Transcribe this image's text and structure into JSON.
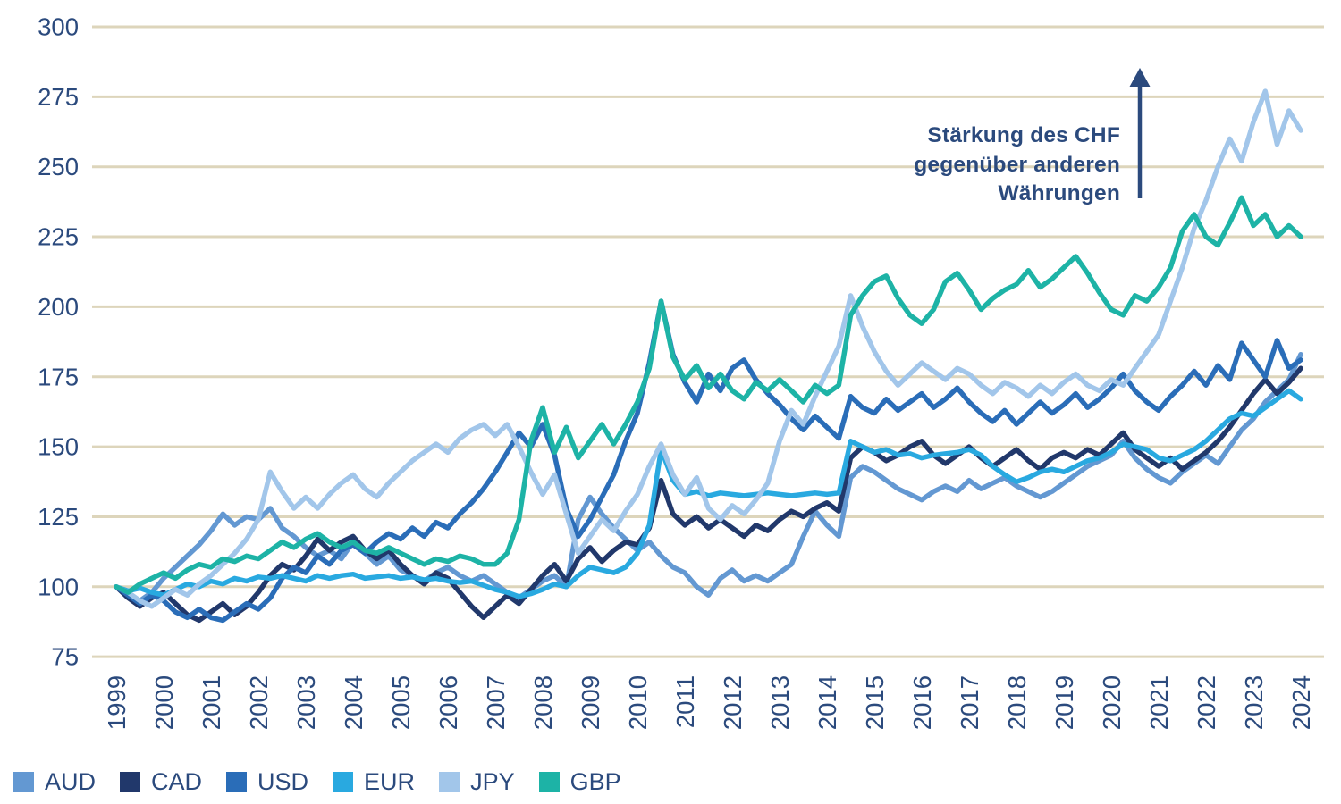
{
  "annotation": {
    "line1": "Stärkung des CHF",
    "line2": "gegenüber anderen",
    "line3": "Währungen"
  },
  "legend": {
    "items": [
      {
        "label": "AUD",
        "color": "#6398d2"
      },
      {
        "label": "CAD",
        "color": "#21386b"
      },
      {
        "label": "USD",
        "color": "#2a6db8"
      },
      {
        "label": "EUR",
        "color": "#29a9e0"
      },
      {
        "label": "JPY",
        "color": "#a2c6ea"
      },
      {
        "label": "GBP",
        "color": "#1db3a6"
      }
    ]
  },
  "colors": {
    "grid": "#ddd5bb",
    "text": "#2b4a7d",
    "arrow": "#2b4a7d",
    "background": "#ffffff"
  },
  "chart_data": {
    "type": "line",
    "title": "",
    "xlabel": "",
    "ylabel": "",
    "grid": true,
    "legend_position": "bottom-left",
    "annotation": "Stärkung des CHF gegenüber anderen Währungen",
    "ylim": [
      75,
      300
    ],
    "y_ticks": [
      300,
      275,
      250,
      225,
      200,
      175,
      150,
      125,
      100,
      75
    ],
    "x_ticks": [
      1999,
      2000,
      2001,
      2002,
      2003,
      2004,
      2005,
      2006,
      2007,
      2008,
      2009,
      2010,
      2011,
      2012,
      2013,
      2014,
      2015,
      2016,
      2017,
      2018,
      2019,
      2020,
      2021,
      2022,
      2023,
      2024
    ],
    "x_start": 1999,
    "x_step": 0.25,
    "index_base": 100,
    "series": [
      {
        "name": "AUD",
        "color": "#6398d2",
        "values": [
          100,
          96,
          95,
          98,
          103,
          107,
          111,
          115,
          120,
          126,
          122,
          125,
          124,
          128,
          121,
          118,
          114,
          111,
          113,
          110,
          116,
          112,
          108,
          111,
          106,
          104,
          102,
          105,
          107,
          104,
          102,
          104,
          101,
          98,
          96,
          99,
          102,
          104,
          100,
          124,
          132,
          126,
          121,
          117,
          113,
          116,
          111,
          107,
          105,
          100,
          97,
          103,
          106,
          102,
          104,
          102,
          105,
          108,
          118,
          127,
          122,
          118,
          139,
          143,
          141,
          138,
          135,
          133,
          131,
          134,
          136,
          134,
          138,
          135,
          137,
          139,
          136,
          134,
          132,
          134,
          137,
          140,
          143,
          145,
          147,
          152,
          146,
          142,
          139,
          137,
          141,
          144,
          147,
          144,
          150,
          156,
          160,
          166,
          170,
          174,
          183
        ]
      },
      {
        "name": "CAD",
        "color": "#21386b",
        "values": [
          100,
          96,
          93,
          96,
          98,
          94,
          90,
          88,
          91,
          94,
          90,
          93,
          98,
          104,
          108,
          106,
          111,
          117,
          113,
          116,
          118,
          113,
          110,
          113,
          108,
          104,
          101,
          105,
          103,
          98,
          93,
          89,
          93,
          97,
          94,
          99,
          104,
          108,
          102,
          110,
          114,
          109,
          113,
          116,
          115,
          121,
          138,
          126,
          122,
          125,
          121,
          124,
          121,
          118,
          122,
          120,
          124,
          127,
          125,
          128,
          130,
          127,
          146,
          150,
          148,
          145,
          147,
          150,
          152,
          147,
          144,
          147,
          150,
          146,
          143,
          146,
          149,
          145,
          142,
          146,
          148,
          146,
          149,
          147,
          151,
          155,
          149,
          146,
          143,
          146,
          142,
          145,
          148,
          152,
          157,
          163,
          169,
          174,
          169,
          173,
          178
        ]
      },
      {
        "name": "USD",
        "color": "#2a6db8",
        "values": [
          100,
          97,
          94,
          97,
          95,
          91,
          89,
          92,
          89,
          88,
          91,
          94,
          92,
          96,
          103,
          107,
          105,
          111,
          108,
          113,
          115,
          112,
          116,
          119,
          117,
          121,
          118,
          123,
          121,
          126,
          130,
          135,
          141,
          148,
          155,
          150,
          158,
          147,
          128,
          118,
          124,
          132,
          140,
          152,
          162,
          180,
          202,
          183,
          173,
          166,
          176,
          170,
          178,
          181,
          174,
          169,
          165,
          160,
          156,
          161,
          157,
          153,
          168,
          164,
          162,
          167,
          163,
          166,
          169,
          164,
          167,
          171,
          166,
          162,
          159,
          163,
          158,
          162,
          166,
          162,
          165,
          169,
          164,
          167,
          171,
          176,
          170,
          166,
          163,
          168,
          172,
          177,
          172,
          179,
          174,
          187,
          181,
          175,
          188,
          178,
          181
        ]
      },
      {
        "name": "EUR",
        "color": "#29a9e0",
        "values": [
          100,
          98.5,
          99.5,
          98,
          97,
          99,
          101,
          100,
          102,
          101,
          103,
          102,
          103.5,
          103,
          104,
          103,
          102,
          104,
          103,
          104,
          104.5,
          103,
          103.5,
          104,
          103,
          103.5,
          102.5,
          103,
          102,
          101.5,
          102,
          100.5,
          99,
          98,
          96.5,
          97.5,
          99,
          101,
          100,
          104,
          107,
          106,
          105,
          107,
          112,
          122,
          149,
          138,
          133,
          134,
          132.5,
          133.5,
          133,
          132.5,
          133,
          133.5,
          133,
          132.5,
          133,
          133.5,
          133,
          133.5,
          152,
          150,
          148,
          149,
          147,
          147.5,
          146,
          147,
          147.5,
          148,
          149,
          147,
          143,
          140,
          137.5,
          139,
          141,
          142,
          141,
          143,
          145,
          146,
          148,
          151,
          150,
          149,
          146,
          145,
          147,
          149,
          152,
          156,
          160,
          162,
          161,
          164,
          167,
          170,
          167
        ]
      },
      {
        "name": "JPY",
        "color": "#a2c6ea",
        "values": [
          100,
          98,
          95,
          93,
          96,
          99,
          97,
          101,
          104,
          108,
          112,
          117,
          124,
          141,
          134,
          128,
          132,
          128,
          133,
          137,
          140,
          135,
          132,
          137,
          141,
          145,
          148,
          151,
          148,
          153,
          156,
          158,
          154,
          158,
          150,
          141,
          133,
          140,
          126,
          112,
          118,
          124,
          120,
          127,
          133,
          143,
          151,
          140,
          133,
          139,
          128,
          124,
          129,
          126,
          131,
          137,
          152,
          163,
          158,
          168,
          177,
          186,
          204,
          193,
          184,
          177,
          172,
          176,
          180,
          177,
          174,
          178,
          176,
          172,
          169,
          173,
          171,
          168,
          172,
          169,
          173,
          176,
          172,
          170,
          174,
          172,
          178,
          184,
          190,
          202,
          214,
          228,
          238,
          250,
          260,
          252,
          266,
          277,
          258,
          270,
          263
        ]
      },
      {
        "name": "GBP",
        "color": "#1db3a6",
        "values": [
          100,
          98,
          101,
          103,
          105,
          103,
          106,
          108,
          107,
          110,
          109,
          111,
          110,
          113,
          116,
          114,
          117,
          119,
          116,
          114,
          116,
          113,
          112,
          114,
          112,
          110,
          108,
          110,
          109,
          111,
          110,
          108,
          108,
          112,
          124,
          152,
          164,
          148,
          157,
          146,
          152,
          158,
          151,
          158,
          166,
          178,
          202,
          182,
          174,
          179,
          171,
          176,
          170,
          167,
          173,
          170,
          174,
          170,
          166,
          172,
          169,
          172,
          197,
          204,
          209,
          211,
          203,
          197,
          194,
          199,
          209,
          212,
          206,
          199,
          203,
          206,
          208,
          213,
          207,
          210,
          214,
          218,
          212,
          205,
          199,
          197,
          204,
          202,
          207,
          214,
          227,
          233,
          225,
          222,
          230,
          239,
          229,
          233,
          225,
          229,
          225
        ]
      }
    ]
  }
}
